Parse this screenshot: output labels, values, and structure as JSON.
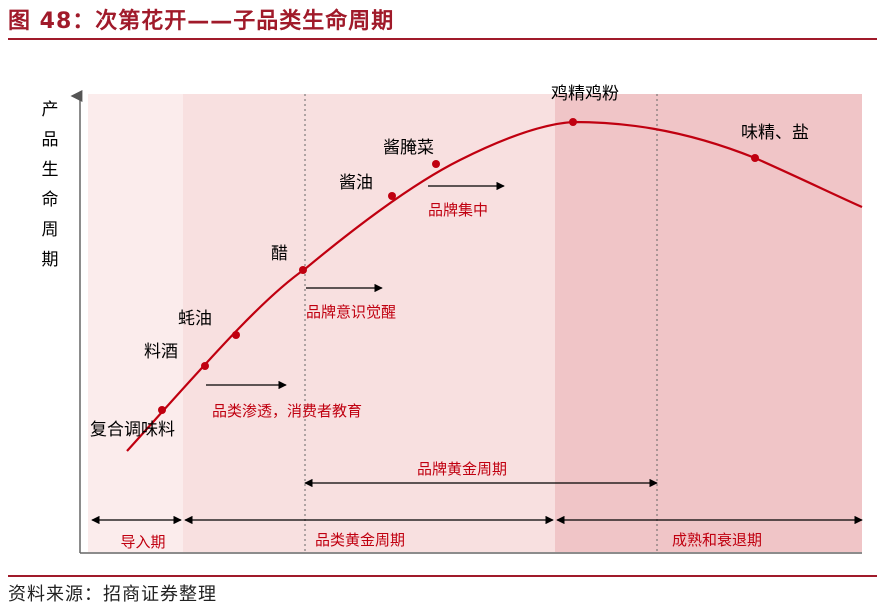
{
  "title": "图 48：次第花开——子品类生命周期",
  "source": "资料来源：招商证券整理",
  "y_axis_label": [
    "产",
    "品",
    "生",
    "命",
    "周",
    "期"
  ],
  "products": [
    {
      "label": "复合调味料"
    },
    {
      "label": "料酒"
    },
    {
      "label": "蚝油"
    },
    {
      "label": "醋"
    },
    {
      "label": "酱油"
    },
    {
      "label": "酱腌菜"
    },
    {
      "label": "鸡精鸡粉"
    },
    {
      "label": "味精、盐"
    }
  ],
  "stage_notes": {
    "penetration": "品类渗透，消费者教育",
    "awareness": "品牌意识觉醒",
    "concentration": "品牌集中"
  },
  "golden_period": "品牌黄金周期",
  "stages": [
    "导入期",
    "品类黄金周期",
    "成熟和衰退期"
  ],
  "colors": {
    "title": "#a01a2a",
    "curve": "#c00010",
    "band_intro": "#fbecec",
    "band_growth": "#f8e0e0",
    "band_mature": "#f0c5c7",
    "accent_text": "#c00010"
  }
}
